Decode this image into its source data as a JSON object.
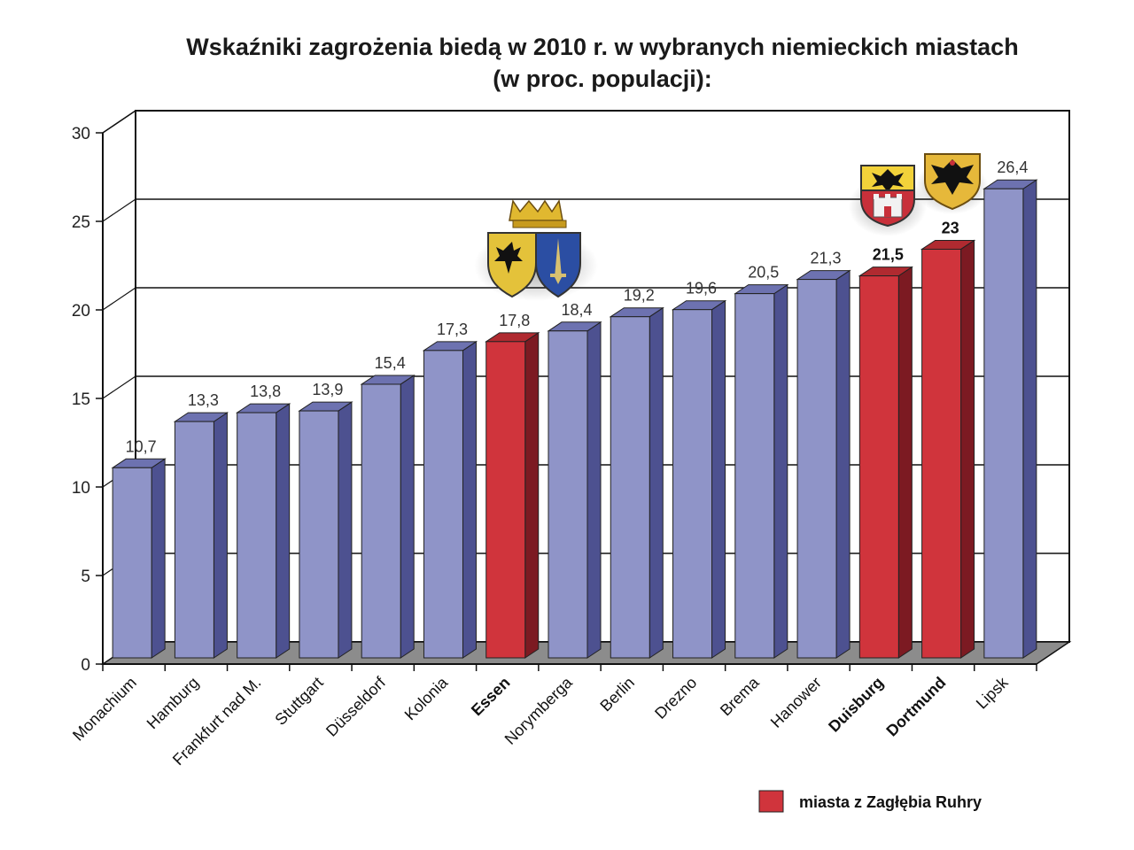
{
  "chart_data": {
    "type": "bar",
    "title": "Wskaźniki zagrożenia biedą w 2010 r. w wybranych niemieckich miastach",
    "subtitle": "(w proc. populacji):",
    "xlabel": "",
    "ylabel": "",
    "ylim": [
      0,
      30
    ],
    "yticks": [
      "0",
      "5",
      "10",
      "15",
      "20",
      "25",
      "30"
    ],
    "grid": true,
    "categories": [
      "Monachium",
      "Hamburg",
      "Frankfurt nad M.",
      "Stuttgart",
      "Düsseldorf",
      "Kolonia",
      "Essen",
      "Norymberga",
      "Berlin",
      "Drezno",
      "Brema",
      "Hanower",
      "Duisburg",
      "Dortmund",
      "Lipsk"
    ],
    "values": [
      10.7,
      13.3,
      13.8,
      13.9,
      15.4,
      17.3,
      17.8,
      18.4,
      19.2,
      19.6,
      20.5,
      21.3,
      21.5,
      23,
      26.4
    ],
    "value_labels": [
      "10,7",
      "13,3",
      "13,8",
      "13,9",
      "15,4",
      "17,3",
      "17,8",
      "18,4",
      "19,2",
      "19,6",
      "20,5",
      "21,3",
      "21,5",
      "23",
      "26,4"
    ],
    "ruhr": [
      false,
      false,
      false,
      false,
      false,
      false,
      true,
      false,
      false,
      false,
      false,
      false,
      true,
      true,
      false
    ],
    "legend": [
      {
        "label": "miasta z Zagłębia Ruhry",
        "color": "#d0343c"
      }
    ],
    "colors": {
      "normal_front": "#8f94c8",
      "normal_side": "#4d5190",
      "normal_top": "#6d72b0",
      "ruhr_front": "#d0343c",
      "ruhr_side": "#7c1a22",
      "ruhr_top": "#b02a30",
      "floor": "#8c8c8c"
    },
    "emblems": [
      {
        "name": "essen-coat-of-arms-icon",
        "near": "Essen"
      },
      {
        "name": "duisburg-coat-of-arms-icon",
        "near": "Duisburg"
      },
      {
        "name": "dortmund-coat-of-arms-icon",
        "near": "Dortmund"
      }
    ]
  }
}
